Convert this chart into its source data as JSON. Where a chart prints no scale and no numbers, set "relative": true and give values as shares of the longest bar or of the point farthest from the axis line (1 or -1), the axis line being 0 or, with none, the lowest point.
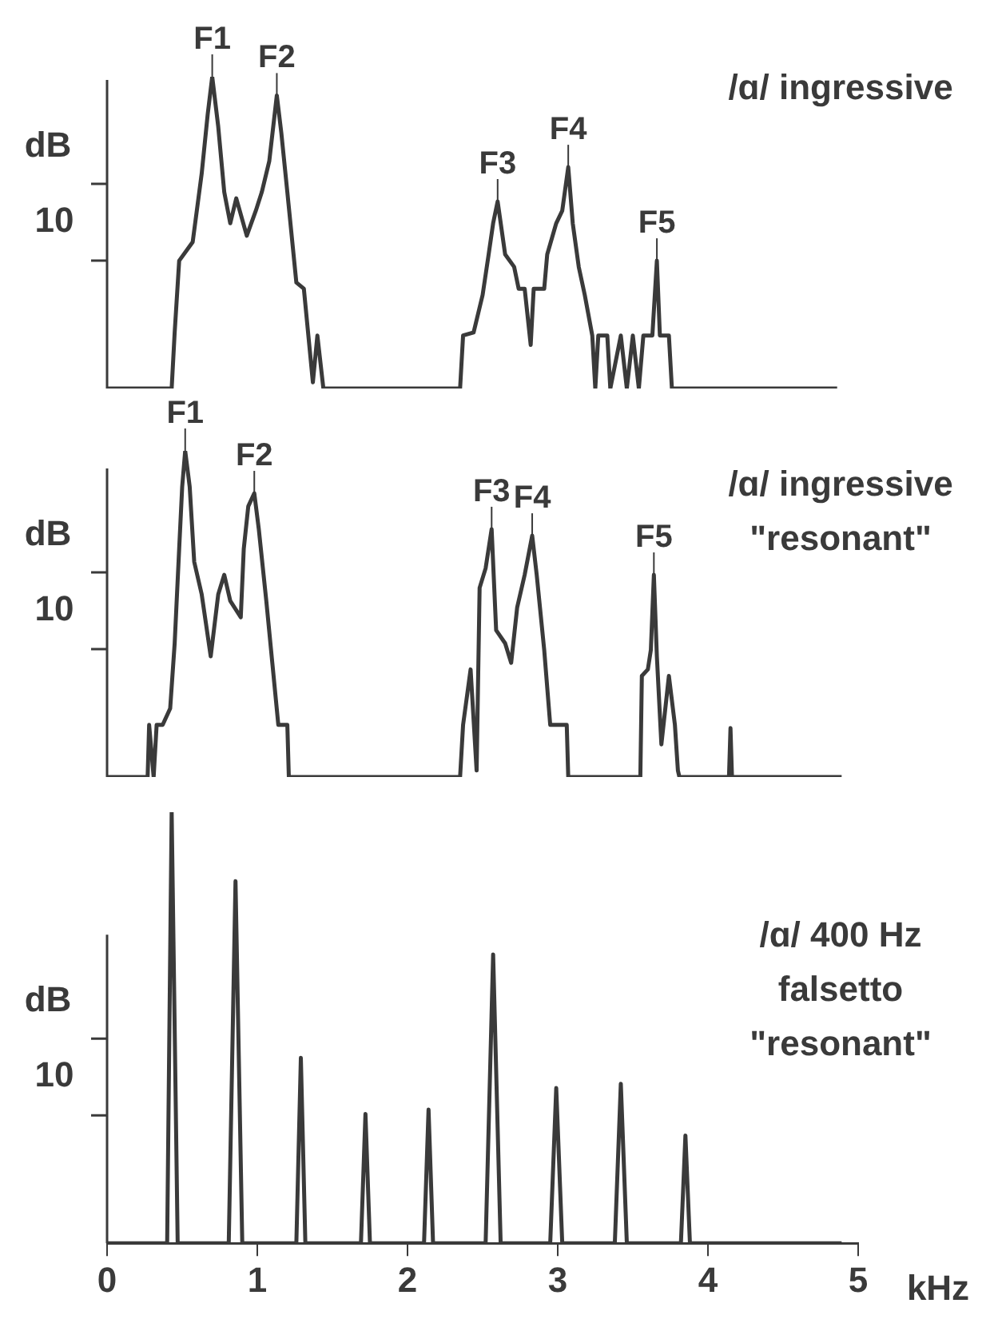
{
  "chart_data": [
    {
      "type": "line",
      "title": "/ɑ/ ingressive",
      "ylabel": "dB",
      "relative": true,
      "xlim": [
        0,
        5
      ],
      "tick_labels": false,
      "color": "#3a3a3a",
      "x": [
        0,
        0.43,
        0.45,
        0.48,
        0.57,
        0.63,
        0.67,
        0.7,
        0.74,
        0.78,
        0.82,
        0.86,
        0.93,
        0.99,
        1.03,
        1.08,
        1.13,
        1.16,
        1.2,
        1.26,
        1.31,
        1.34,
        1.37,
        1.4,
        1.44,
        2.35,
        2.37,
        2.44,
        2.5,
        2.54,
        2.57,
        2.6,
        2.65,
        2.71,
        2.74,
        2.78,
        2.82,
        2.84,
        2.91,
        2.93,
        2.99,
        3.03,
        3.07,
        3.1,
        3.14,
        3.18,
        3.23,
        3.25,
        3.27,
        3.33,
        3.35,
        3.42,
        3.46,
        3.5,
        3.54,
        3.57,
        3.63,
        3.66,
        3.68,
        3.74,
        3.76,
        4.86
      ],
      "values": [
        0,
        0,
        0.18,
        0.41,
        0.47,
        0.69,
        0.88,
        1.0,
        0.84,
        0.63,
        0.53,
        0.61,
        0.49,
        0.57,
        0.63,
        0.73,
        0.94,
        0.82,
        0.63,
        0.34,
        0.32,
        0.17,
        0.02,
        0.17,
        0,
        0,
        0.17,
        0.18,
        0.3,
        0.43,
        0.53,
        0.6,
        0.43,
        0.39,
        0.32,
        0.32,
        0.14,
        0.32,
        0.32,
        0.43,
        0.53,
        0.57,
        0.71,
        0.53,
        0.39,
        0.3,
        0.17,
        0,
        0.17,
        0.17,
        0,
        0.17,
        0,
        0.17,
        0,
        0.17,
        0.17,
        0.41,
        0.17,
        0.17,
        0,
        0
      ],
      "annotations": [
        "10",
        {
          "text": "F1",
          "x": 0.7,
          "y": 1.0
        },
        {
          "text": "F2",
          "x": 1.13,
          "y": 0.94
        },
        {
          "text": "F3",
          "x": 2.6,
          "y": 0.6
        },
        {
          "text": "F4",
          "x": 3.07,
          "y": 0.71
        },
        {
          "text": "F5",
          "x": 3.66,
          "y": 0.41
        }
      ]
    },
    {
      "type": "line",
      "title": "/ɑ/ ingressive \"resonant\"",
      "ylabel": "dB",
      "relative": true,
      "xlim": [
        0,
        5
      ],
      "tick_labels": false,
      "color": "#3a3a3a",
      "x": [
        0,
        0.27,
        0.28,
        0.31,
        0.33,
        0.37,
        0.42,
        0.45,
        0.48,
        0.5,
        0.52,
        0.55,
        0.58,
        0.63,
        0.69,
        0.74,
        0.78,
        0.82,
        0.89,
        0.91,
        0.94,
        0.98,
        1.01,
        1.06,
        1.1,
        1.14,
        1.2,
        1.21,
        2.35,
        2.37,
        2.42,
        2.46,
        2.48,
        2.52,
        2.56,
        2.59,
        2.65,
        2.69,
        2.73,
        2.78,
        2.83,
        2.86,
        2.91,
        2.95,
        3.06,
        3.07,
        3.55,
        3.56,
        3.6,
        3.62,
        3.64,
        3.66,
        3.69,
        3.74,
        3.78,
        3.8,
        3.81,
        4.14,
        4.15,
        4.16,
        4.89
      ],
      "values": [
        0,
        0,
        0.16,
        0,
        0.16,
        0.16,
        0.21,
        0.41,
        0.7,
        0.89,
        1.0,
        0.89,
        0.66,
        0.56,
        0.37,
        0.56,
        0.62,
        0.54,
        0.49,
        0.7,
        0.83,
        0.87,
        0.76,
        0.54,
        0.35,
        0.16,
        0.16,
        0,
        0,
        0.16,
        0.33,
        0.02,
        0.58,
        0.64,
        0.76,
        0.45,
        0.41,
        0.35,
        0.52,
        0.62,
        0.74,
        0.62,
        0.39,
        0.16,
        0.16,
        0,
        0,
        0.31,
        0.33,
        0.39,
        0.62,
        0.37,
        0.1,
        0.31,
        0.16,
        0.02,
        0,
        0,
        0.15,
        0,
        0
      ],
      "annotations": [
        "10",
        {
          "text": "F1",
          "x": 0.52,
          "y": 1.0
        },
        {
          "text": "F2",
          "x": 0.98,
          "y": 0.87
        },
        {
          "text": "F3",
          "x": 2.56,
          "y": 0.76
        },
        {
          "text": "F4",
          "x": 2.83,
          "y": 0.74
        },
        {
          "text": "F5",
          "x": 3.64,
          "y": 0.62
        }
      ]
    },
    {
      "type": "line",
      "title": "/ɑ/ 400 Hz falsetto \"resonant\"",
      "ylabel": "dB",
      "xlabel": "kHz",
      "relative": true,
      "xlim": [
        0,
        5
      ],
      "xticks": [
        0,
        1,
        2,
        3,
        4,
        5
      ],
      "tick_labels": "x",
      "color": "#3a3a3a",
      "x": [
        0,
        0.4,
        0.43,
        0.47,
        0.81,
        0.855,
        0.9,
        1.26,
        1.29,
        1.32,
        1.69,
        1.72,
        1.75,
        2.11,
        2.14,
        2.17,
        2.52,
        2.57,
        2.62,
        2.95,
        2.99,
        3.03,
        3.38,
        3.42,
        3.46,
        3.82,
        3.85,
        3.88,
        4.89
      ],
      "values": [
        0,
        0,
        1.0,
        0,
        0,
        0.84,
        0,
        0,
        0.43,
        0,
        0,
        0.3,
        0,
        0,
        0.31,
        0,
        0,
        0.67,
        0,
        0,
        0.36,
        0,
        0,
        0.37,
        0,
        0,
        0.25,
        0,
        0
      ],
      "annotations": [
        "10"
      ]
    }
  ]
}
